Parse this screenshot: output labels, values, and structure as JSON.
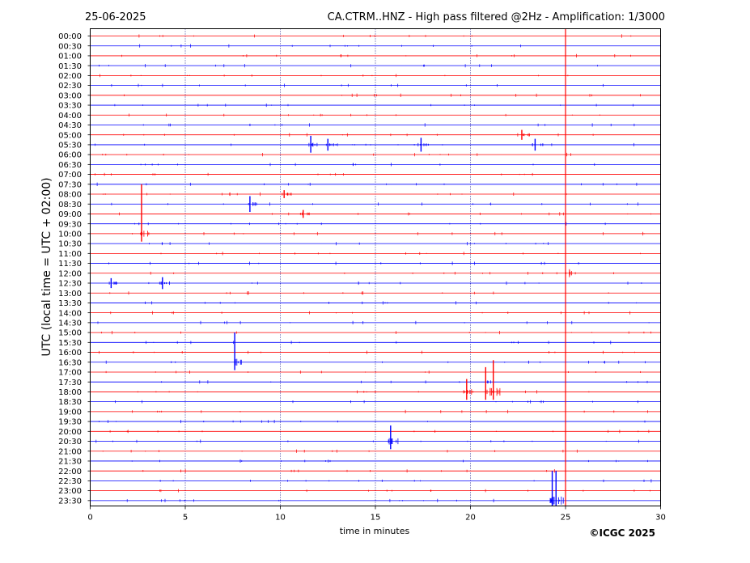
{
  "header": {
    "date": "25-06-2025",
    "title": "CA.CTRM..HNZ - High pass filtered @2Hz - Amplification: 1/3000"
  },
  "footer": {
    "copyright": "©ICGC 2025"
  },
  "colors": {
    "trace_red": "#ff0000",
    "trace_blue": "#0000ff",
    "frame": "#000000",
    "grid": "#000080"
  },
  "chart_data": {
    "type": "line",
    "xlabel": "time in minutes",
    "ylabel": "UTC (local time = UTC + 02:00)",
    "xlim": [
      0,
      30
    ],
    "x_ticks": [
      0,
      5,
      10,
      15,
      20,
      25,
      30
    ],
    "grid": "vertical dotted at 5, 10, 15, 20, 25",
    "row_labels": [
      "00:00",
      "00:30",
      "01:00",
      "01:30",
      "02:00",
      "02:30",
      "03:00",
      "03:30",
      "04:00",
      "04:30",
      "05:00",
      "05:30",
      "06:00",
      "06:30",
      "07:00",
      "07:30",
      "08:00",
      "08:30",
      "09:00",
      "09:30",
      "10:00",
      "10:30",
      "11:00",
      "11:30",
      "12:00",
      "12:30",
      "13:00",
      "13:30",
      "14:00",
      "14:30",
      "15:00",
      "15:30",
      "16:00",
      "16:30",
      "17:00",
      "17:30",
      "18:00",
      "18:30",
      "19:00",
      "19:30",
      "20:00",
      "20:30",
      "21:00",
      "21:30",
      "22:00",
      "22:30",
      "23:00",
      "23:30"
    ],
    "row_colors": [
      "red",
      "blue"
    ],
    "events": [
      {
        "row": "05:30",
        "minute": 11.6,
        "amplitude": 0.9
      },
      {
        "row": "05:30",
        "minute": 12.5,
        "amplitude": 0.6
      },
      {
        "row": "05:30",
        "minute": 17.4,
        "amplitude": 0.7
      },
      {
        "row": "05:30",
        "minute": 23.4,
        "amplitude": 0.6
      },
      {
        "row": "05:00",
        "minute": 22.7,
        "amplitude": 0.5
      },
      {
        "row": "08:00",
        "minute": 10.2,
        "amplitude": 0.4
      },
      {
        "row": "08:30",
        "minute": 8.4,
        "amplitude": 0.8
      },
      {
        "row": "09:00",
        "minute": 11.2,
        "amplitude": 0.4
      },
      {
        "row": "12:30",
        "minute": 1.1,
        "amplitude": 0.5
      },
      {
        "row": "12:30",
        "minute": 3.8,
        "amplitude": 0.6
      },
      {
        "row": "10:00",
        "minute": 2.7,
        "amplitude": 5.0
      },
      {
        "row": "16:30",
        "minute": 7.6,
        "amplitude": 3.0
      },
      {
        "row": "18:00",
        "minute": 19.8,
        "amplitude": 1.3
      },
      {
        "row": "18:00",
        "minute": 20.8,
        "amplitude": 2.5
      },
      {
        "row": "18:00",
        "minute": 21.2,
        "amplitude": 3.2
      },
      {
        "row": "20:30",
        "minute": 15.8,
        "amplitude": 1.6
      },
      {
        "row": "23:30",
        "minute": 24.3,
        "amplitude": 3.0
      },
      {
        "row": "23:30",
        "minute": 24.5,
        "amplitude": 3.0
      },
      {
        "row": "12:00",
        "minute": 25.0,
        "amplitude": 25.0
      }
    ]
  }
}
